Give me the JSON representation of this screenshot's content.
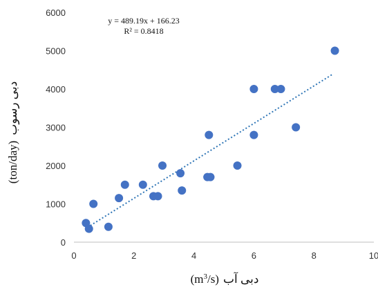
{
  "chart_data": {
    "type": "scatter",
    "equation": "y = 489.19x + 166.23",
    "r_squared": "R² = 0.8418",
    "xlabel_unit": "(m",
    "xlabel_sup": "3",
    "xlabel_unit_end": "/s)",
    "xlabel_text": "دبی آب",
    "ylabel_text": "دبی رسوب",
    "ylabel_unit": "(ton/day)",
    "xlim": [
      0,
      10
    ],
    "ylim": [
      0,
      6000
    ],
    "xticks": [
      0,
      2,
      4,
      6,
      8,
      10
    ],
    "yticks": [
      0,
      1000,
      2000,
      3000,
      4000,
      5000,
      6000
    ],
    "grid": false,
    "trendline": {
      "slope": 489.19,
      "intercept": 166.23,
      "x_range": [
        0.45,
        8.65
      ],
      "style": "dotted",
      "color": "#2e75b6"
    },
    "marker_color": "#4472c4",
    "points": [
      {
        "x": 0.4,
        "y": 500
      },
      {
        "x": 0.5,
        "y": 350
      },
      {
        "x": 0.65,
        "y": 1000
      },
      {
        "x": 1.15,
        "y": 400
      },
      {
        "x": 1.5,
        "y": 1150
      },
      {
        "x": 1.7,
        "y": 1500
      },
      {
        "x": 2.3,
        "y": 1500
      },
      {
        "x": 2.65,
        "y": 1200
      },
      {
        "x": 2.8,
        "y": 1200
      },
      {
        "x": 2.95,
        "y": 2000
      },
      {
        "x": 3.55,
        "y": 1800
      },
      {
        "x": 3.6,
        "y": 1350
      },
      {
        "x": 4.45,
        "y": 1700
      },
      {
        "x": 4.5,
        "y": 2800
      },
      {
        "x": 4.55,
        "y": 1700
      },
      {
        "x": 5.45,
        "y": 2000
      },
      {
        "x": 6.0,
        "y": 4000
      },
      {
        "x": 6.0,
        "y": 2800
      },
      {
        "x": 6.7,
        "y": 4000
      },
      {
        "x": 6.9,
        "y": 4000
      },
      {
        "x": 7.4,
        "y": 3000
      },
      {
        "x": 8.7,
        "y": 5000
      }
    ]
  }
}
